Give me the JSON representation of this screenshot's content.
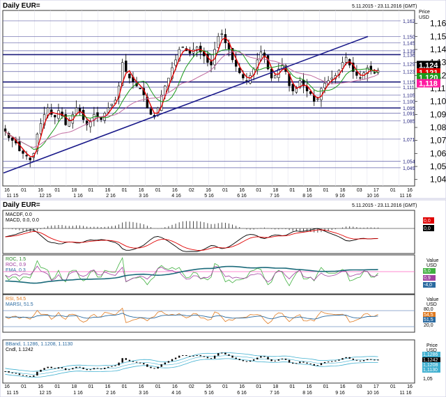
{
  "top": {
    "title": "Daily EUR=",
    "date_range": "5.11.2015 - 23.11.2016 (GMT)",
    "price_header": [
      "Price",
      "USD"
    ]
  },
  "bottom": {
    "title": "Daily EUR=",
    "date_range": "5.11.2015 - 23.11.2016 (GMT)"
  },
  "x_axis": {
    "day_labels": [
      "16",
      "01",
      "16",
      "01",
      "18",
      "01",
      "16",
      "01",
      "16",
      "01",
      "16",
      "02",
      "16",
      "01",
      "16",
      "01",
      "18",
      "01",
      "16",
      "01",
      "16",
      "03",
      "17",
      "01",
      "16"
    ],
    "month_labels": [
      "11 15",
      "12 15",
      "1 16",
      "2 16",
      "3 16",
      "4 16",
      "5 16",
      "6 16",
      "7 16",
      "8 16",
      "9 16",
      "10 16",
      "11 16"
    ]
  },
  "hlines": [
    {
      "value": 1.162,
      "label": "1.162",
      "bold": false
    },
    {
      "value": 1.15,
      "label": "1.150",
      "bold": false
    },
    {
      "value": 1.145,
      "label": "1.145",
      "bold": false
    },
    {
      "value": 1.139,
      "label": "1.139",
      "bold": false
    },
    {
      "value": 1.136,
      "label": "1.136",
      "bold": true
    },
    {
      "value": 1.129,
      "label": "1.129",
      "bold": false
    },
    {
      "value": 1.123,
      "label": "1.123",
      "bold": false
    },
    {
      "value": 1.115,
      "label": "1.115",
      "bold": true
    },
    {
      "value": 1.111,
      "label": "1.111",
      "bold": false
    },
    {
      "value": 1.105,
      "label": "1.105",
      "bold": false
    },
    {
      "value": 1.1,
      "label": "1.100",
      "bold": false
    },
    {
      "value": 1.095,
      "label": "1.095",
      "bold": true
    },
    {
      "value": 1.091,
      "label": "1.091",
      "bold": false
    },
    {
      "value": 1.085,
      "label": "1.085",
      "bold": false
    },
    {
      "value": 1.071,
      "label": "1.071",
      "bold": false
    },
    {
      "value": 1.054,
      "label": "1.054",
      "bold": false
    },
    {
      "value": 1.049,
      "label": "1.049",
      "bold": false
    }
  ],
  "price_badges": [
    {
      "value": 1.124,
      "label": "1.124",
      "bg": "#000000",
      "fg": "#ffffff"
    },
    {
      "value": 1.121,
      "label": "1.121",
      "bg": "#e00000",
      "fg": "#ffffff"
    },
    {
      "value": 1.12,
      "label": "1.120",
      "bg": "#1a9a1a",
      "fg": "#ffffff"
    },
    {
      "value": 1.118,
      "label": "1.118",
      "bg": "#ff1aa0",
      "fg": "#ffffff"
    }
  ],
  "macd_panel": {
    "label1": "MACDF, 0.0",
    "label2": "MACD, 0.0, 0.0",
    "axis_labels": [
      "0.0",
      "0.0"
    ],
    "badge_colors": [
      "#e00000",
      "#000000"
    ]
  },
  "roc_panel": {
    "label1": "ROC, 1.5",
    "label2": "ROC, 0.9",
    "label3": "EMA, 0.3",
    "value_header": [
      "Value",
      "USD"
    ],
    "axis_labels": [
      "5.0",
      "0.9",
      "-4.0"
    ]
  },
  "rsi_panel": {
    "label1": "RSI, 54.5",
    "label2": "MARSI, 51.5",
    "value_header": [
      "Value",
      "USD"
    ],
    "axis_labels": [
      "80.0",
      "54.5",
      "51.5",
      "20.0"
    ]
  },
  "bb_panel": {
    "label1": "BBand, 1.1286, 1.1208, 1.1130",
    "label2": "Cndl, 1.1242",
    "price_header": [
      "Price",
      "USD"
    ],
    "axis_labels": [
      "1.1286",
      "1.1242",
      "1.1208",
      "1.1130",
      "1.05"
    ]
  },
  "chart_data": {
    "type": "candlestick",
    "title": "Daily EUR=",
    "ylabel": "Price USD",
    "ylim": [
      1.035,
      1.17
    ],
    "y_ticks": [
      1.04,
      1.05,
      1.06,
      1.07,
      1.08,
      1.09,
      1.1,
      1.11,
      1.12,
      1.13,
      1.14,
      1.15,
      1.16
    ],
    "close_series": [
      1.077,
      1.072,
      1.07,
      1.068,
      1.062,
      1.06,
      1.058,
      1.055,
      1.06,
      1.075,
      1.083,
      1.09,
      1.095,
      1.09,
      1.088,
      1.093,
      1.089,
      1.082,
      1.085,
      1.09,
      1.095,
      1.092,
      1.086,
      1.082,
      1.085,
      1.09,
      1.088,
      1.086,
      1.091,
      1.095,
      1.098,
      1.101,
      1.112,
      1.13,
      1.123,
      1.118,
      1.115,
      1.112,
      1.11,
      1.105,
      1.095,
      1.09,
      1.088,
      1.095,
      1.105,
      1.112,
      1.118,
      1.126,
      1.132,
      1.14,
      1.142,
      1.139,
      1.137,
      1.14,
      1.142,
      1.138,
      1.135,
      1.13,
      1.128,
      1.14,
      1.15,
      1.152,
      1.145,
      1.14,
      1.132,
      1.127,
      1.122,
      1.118,
      1.116,
      1.12,
      1.125,
      1.132,
      1.138,
      1.135,
      1.125,
      1.118,
      1.12,
      1.125,
      1.128,
      1.123,
      1.112,
      1.108,
      1.11,
      1.116,
      1.112,
      1.108,
      1.106,
      1.1,
      1.102,
      1.11,
      1.114,
      1.116,
      1.118,
      1.12,
      1.124,
      1.13,
      1.134,
      1.128,
      1.123,
      1.12,
      1.118,
      1.122,
      1.126,
      1.124,
      1.122,
      1.124
    ],
    "ma_series": [
      {
        "name": "MA1",
        "color": "#e00000"
      },
      {
        "name": "MA2",
        "color": "#1a9a1a"
      },
      {
        "name": "MA3",
        "color": "#c06aa0"
      }
    ],
    "trendline": {
      "from": 1.045,
      "to": 1.15
    }
  }
}
